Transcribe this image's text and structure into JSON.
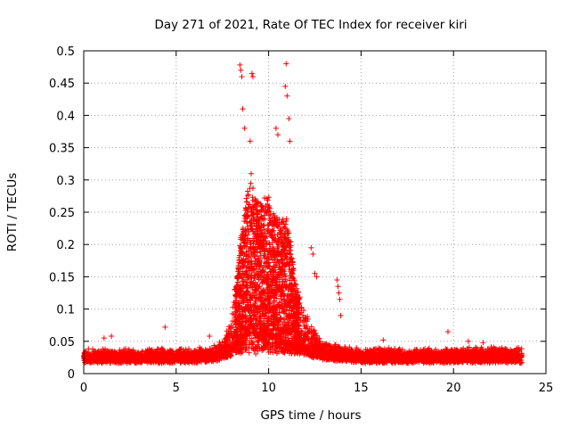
{
  "chart_data": {
    "type": "scatter",
    "title": "Day 271 of 2021, Rate Of TEC Index for receiver kiri",
    "xlabel": "GPS time / hours",
    "ylabel": "ROTI / TECUs",
    "xlim": [
      0,
      25
    ],
    "ylim": [
      0,
      0.5
    ],
    "grid": true,
    "marker": "+",
    "point_color": "#ff0000",
    "x_ticks": [
      0,
      5,
      10,
      15,
      20,
      25
    ],
    "x_tick_labels": [
      "0",
      "5",
      "10",
      "15",
      "20",
      "25"
    ],
    "y_ticks": [
      0,
      0.05,
      0.1,
      0.15,
      0.2,
      0.25,
      0.3,
      0.35,
      0.4,
      0.45,
      0.5
    ],
    "y_tick_labels": [
      "0",
      "0.05",
      "0.1",
      "0.15",
      "0.2",
      "0.25",
      "0.3",
      "0.35",
      "0.4",
      "0.45",
      "0.5"
    ],
    "envelope": {
      "x": [
        0,
        2,
        4,
        6,
        7,
        7.5,
        8,
        8.3,
        8.6,
        9,
        9.5,
        10,
        10.5,
        11,
        11.5,
        12,
        12.5,
        13,
        14,
        15,
        16,
        18,
        20,
        22,
        23.7
      ],
      "baseline": [
        0.02,
        0.02,
        0.02,
        0.02,
        0.022,
        0.025,
        0.03,
        0.04,
        0.05,
        0.06,
        0.05,
        0.05,
        0.04,
        0.04,
        0.035,
        0.03,
        0.028,
        0.025,
        0.022,
        0.02,
        0.02,
        0.02,
        0.02,
        0.02,
        0.02
      ],
      "spread": [
        0.012,
        0.012,
        0.012,
        0.012,
        0.014,
        0.02,
        0.05,
        0.12,
        0.2,
        0.25,
        0.22,
        0.22,
        0.2,
        0.2,
        0.1,
        0.06,
        0.03,
        0.02,
        0.015,
        0.012,
        0.014,
        0.012,
        0.013,
        0.015,
        0.012
      ]
    },
    "notable_points": [
      {
        "x": 8.45,
        "y": 0.478
      },
      {
        "x": 8.5,
        "y": 0.47
      },
      {
        "x": 8.55,
        "y": 0.46
      },
      {
        "x": 9.1,
        "y": 0.465
      },
      {
        "x": 9.15,
        "y": 0.46
      },
      {
        "x": 10.95,
        "y": 0.48
      },
      {
        "x": 10.9,
        "y": 0.445
      },
      {
        "x": 11.0,
        "y": 0.43
      },
      {
        "x": 8.6,
        "y": 0.41
      },
      {
        "x": 8.7,
        "y": 0.38
      },
      {
        "x": 9.0,
        "y": 0.36
      },
      {
        "x": 10.4,
        "y": 0.38
      },
      {
        "x": 10.5,
        "y": 0.37
      },
      {
        "x": 11.1,
        "y": 0.395
      },
      {
        "x": 11.15,
        "y": 0.36
      },
      {
        "x": 12.3,
        "y": 0.195
      },
      {
        "x": 12.4,
        "y": 0.185
      },
      {
        "x": 12.5,
        "y": 0.155
      },
      {
        "x": 12.6,
        "y": 0.15
      },
      {
        "x": 13.7,
        "y": 0.145
      },
      {
        "x": 13.75,
        "y": 0.135
      },
      {
        "x": 13.8,
        "y": 0.125
      },
      {
        "x": 13.85,
        "y": 0.115
      },
      {
        "x": 13.9,
        "y": 0.09
      },
      {
        "x": 4.4,
        "y": 0.072
      },
      {
        "x": 1.5,
        "y": 0.058
      },
      {
        "x": 1.1,
        "y": 0.055
      },
      {
        "x": 19.7,
        "y": 0.065
      },
      {
        "x": 20.8,
        "y": 0.05
      },
      {
        "x": 21.6,
        "y": 0.048
      },
      {
        "x": 16.2,
        "y": 0.052
      },
      {
        "x": 6.8,
        "y": 0.058
      }
    ]
  }
}
